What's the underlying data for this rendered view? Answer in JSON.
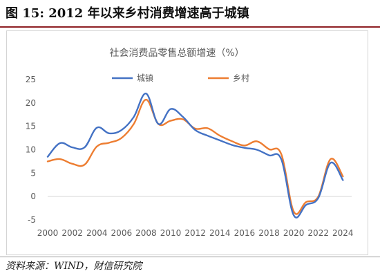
{
  "figure": {
    "title": "图 15:  2012 年以来乡村消费增速高于城镇",
    "source": "资料来源：WIND，财信研究院"
  },
  "colors": {
    "urban": "#4472c4",
    "rural": "#ed7d31",
    "axis": "#d9d9d9",
    "text": "#595959",
    "accent": "#8e1f24"
  },
  "chart_data": {
    "type": "line",
    "title": "社会消费品零售总额增速（%）",
    "xlabel": "",
    "ylabel": "",
    "x": [
      2000,
      2001,
      2002,
      2003,
      2004,
      2005,
      2006,
      2007,
      2008,
      2009,
      2010,
      2011,
      2012,
      2013,
      2014,
      2015,
      2016,
      2017,
      2018,
      2019,
      2020,
      2021,
      2022,
      2023,
      2024
    ],
    "xticks": [
      "2000",
      "2002",
      "2004",
      "2006",
      "2008",
      "2010",
      "2012",
      "2014",
      "2016",
      "2018",
      "2020",
      "2022",
      "2024"
    ],
    "yticks": [
      "25",
      "20",
      "15",
      "10",
      "5",
      "0",
      "-5"
    ],
    "ylim": [
      -5,
      25
    ],
    "xlim": [
      2000,
      2024.6
    ],
    "legend": "top",
    "grid": false,
    "series": [
      {
        "name": "城镇",
        "values": [
          8.5,
          11.4,
          10.5,
          10.5,
          14.7,
          13.5,
          14.2,
          17.0,
          22.0,
          15.5,
          18.7,
          17.0,
          14.2,
          13.0,
          12.0,
          11.0,
          10.4,
          10.0,
          8.8,
          7.9,
          -4.0,
          -1.8,
          -0.3,
          7.2,
          3.5
        ]
      },
      {
        "name": "乡村",
        "values": [
          7.5,
          8.0,
          7.0,
          6.8,
          10.7,
          11.5,
          12.5,
          15.5,
          20.7,
          15.5,
          16.2,
          16.5,
          14.5,
          14.6,
          13.0,
          11.8,
          10.9,
          11.8,
          10.1,
          9.0,
          -3.2,
          -1.2,
          0.0,
          8.0,
          4.3
        ]
      }
    ]
  }
}
